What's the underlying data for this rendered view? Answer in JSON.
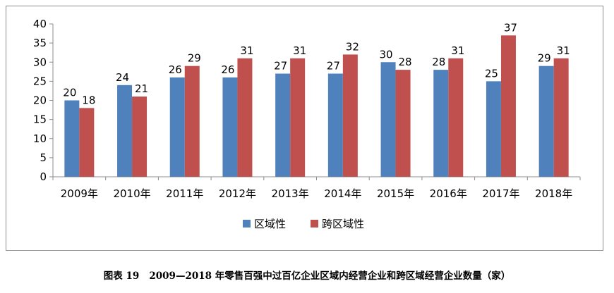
{
  "chart_data": {
    "type": "bar",
    "categories": [
      "2009年",
      "2010年",
      "2011年",
      "2012年",
      "2013年",
      "2014年",
      "2015年",
      "2016年",
      "2017年",
      "2018年"
    ],
    "series": [
      {
        "name": "区域性",
        "color": "#4f81bd",
        "values": [
          20,
          24,
          26,
          26,
          27,
          27,
          30,
          28,
          25,
          29
        ]
      },
      {
        "name": "跨区域性",
        "color": "#c0504d",
        "values": [
          18,
          21,
          29,
          31,
          31,
          32,
          28,
          31,
          37,
          31
        ]
      }
    ],
    "ylim": [
      0,
      40
    ],
    "yticks": [
      "0",
      "5",
      "10",
      "15",
      "20",
      "25",
      "30",
      "35",
      "40"
    ],
    "grid": false,
    "data_labels": true,
    "legend_position": "bottom"
  },
  "caption": {
    "figure_label": "图表 19",
    "text": "2009—2018 年零售百强中过百亿企业区域内经营企业和跨区域经营企业数量（家）"
  }
}
